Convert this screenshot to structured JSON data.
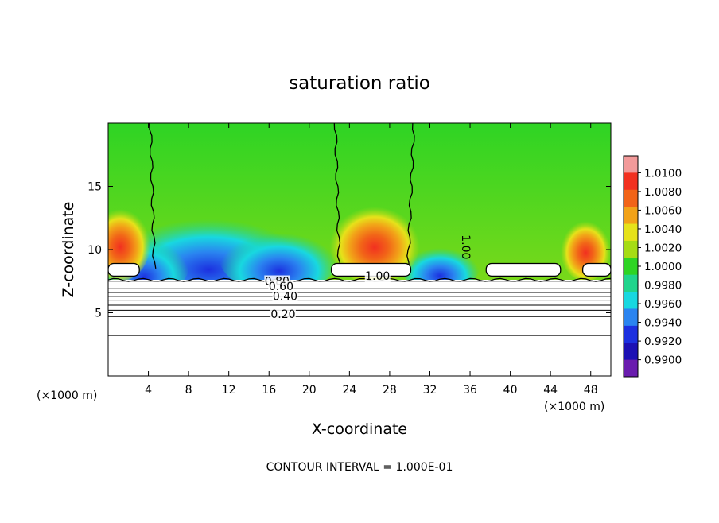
{
  "chart_data": {
    "type": "heatmap",
    "title": "saturation ratio",
    "xlabel": "X-coordinate",
    "ylabel": "Z-coordinate",
    "x_unit": "(×1000 m)",
    "z_unit": "(×1000 m)",
    "xlim": [
      0,
      50
    ],
    "ylim": [
      0,
      20
    ],
    "x_ticks": [
      4,
      8,
      12,
      16,
      20,
      24,
      28,
      32,
      36,
      40,
      44,
      48
    ],
    "y_ticks": [
      5,
      10,
      15
    ],
    "footer": "CONTOUR INTERVAL = 1.000E-01",
    "colorbar": {
      "labels": [
        "1.0100",
        "1.0080",
        "1.0060",
        "1.0040",
        "1.0020",
        "1.0000",
        "0.9980",
        "0.9960",
        "0.9940",
        "0.9920",
        "0.9900"
      ],
      "colors": [
        "#f29a9a",
        "#f23020",
        "#f26418",
        "#f2a218",
        "#e6e21a",
        "#a6dc14",
        "#2ed424",
        "#20d48c",
        "#18d8e0",
        "#2a84f0",
        "#1c30e0",
        "#1c10b4",
        "#6a1cae"
      ]
    },
    "contour_labels": [
      {
        "text": "1.00",
        "x": 26.8,
        "z": 7.6
      },
      {
        "text": "1.00",
        "x": 35.2,
        "z": 10.2
      },
      {
        "text": "0.80",
        "x": 16.8,
        "z": 7.2
      },
      {
        "text": "0.60",
        "x": 17.2,
        "z": 6.8
      },
      {
        "text": "0.40",
        "x": 17.6,
        "z": 6.0
      },
      {
        "text": "0.20",
        "x": 17.4,
        "z": 4.6
      }
    ],
    "cloud_tops": [
      {
        "x0": 0,
        "x1": 3.1
      },
      {
        "x0": 22.2,
        "x1": 30.1
      },
      {
        "x0": 37.6,
        "x1": 45.0
      },
      {
        "x0": 47.2,
        "x1": 50
      }
    ],
    "stratified_levels_z": [
      3.2,
      4.7,
      5.2,
      5.6,
      6.0,
      6.3,
      6.6,
      6.9,
      7.2,
      7.5
    ]
  }
}
